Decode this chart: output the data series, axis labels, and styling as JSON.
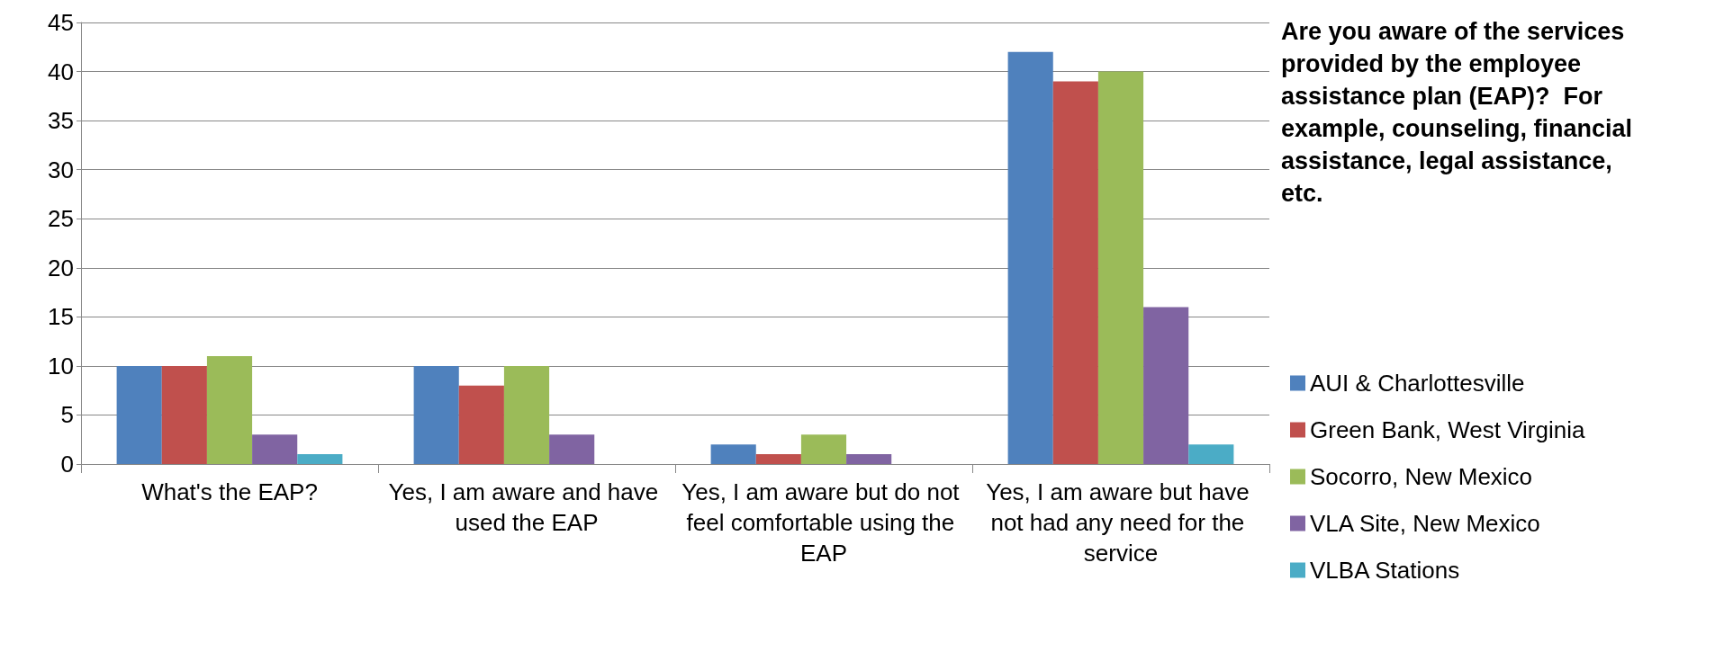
{
  "chart_data": {
    "type": "bar",
    "title": "Are you aware of the services provided by the employee assistance plan (EAP)?  For example, counseling, financial assistance, legal assistance, etc.",
    "categories": [
      "What's the EAP?",
      "Yes, I am aware and have used the EAP",
      "Yes, I am aware but do not feel comfortable using the EAP",
      "Yes, I am aware but have not had any need for the service"
    ],
    "series": [
      {
        "name": "AUI & Charlottesville",
        "color": "#4f81bd",
        "values": [
          10,
          10,
          2,
          42
        ]
      },
      {
        "name": "Green Bank, West Virginia",
        "color": "#c0504d",
        "values": [
          10,
          8,
          1,
          39
        ]
      },
      {
        "name": "Socorro, New Mexico",
        "color": "#9bbb59",
        "values": [
          11,
          10,
          3,
          40
        ]
      },
      {
        "name": "VLA Site, New Mexico",
        "color": "#8064a2",
        "values": [
          3,
          3,
          1,
          16
        ]
      },
      {
        "name": "VLBA Stations",
        "color": "#4bacc6",
        "values": [
          1,
          0,
          0,
          2
        ]
      }
    ],
    "ylim": [
      0,
      45
    ],
    "yticks": [
      0,
      5,
      10,
      15,
      20,
      25,
      30,
      35,
      40,
      45
    ],
    "grid": "y",
    "legend": "right"
  }
}
